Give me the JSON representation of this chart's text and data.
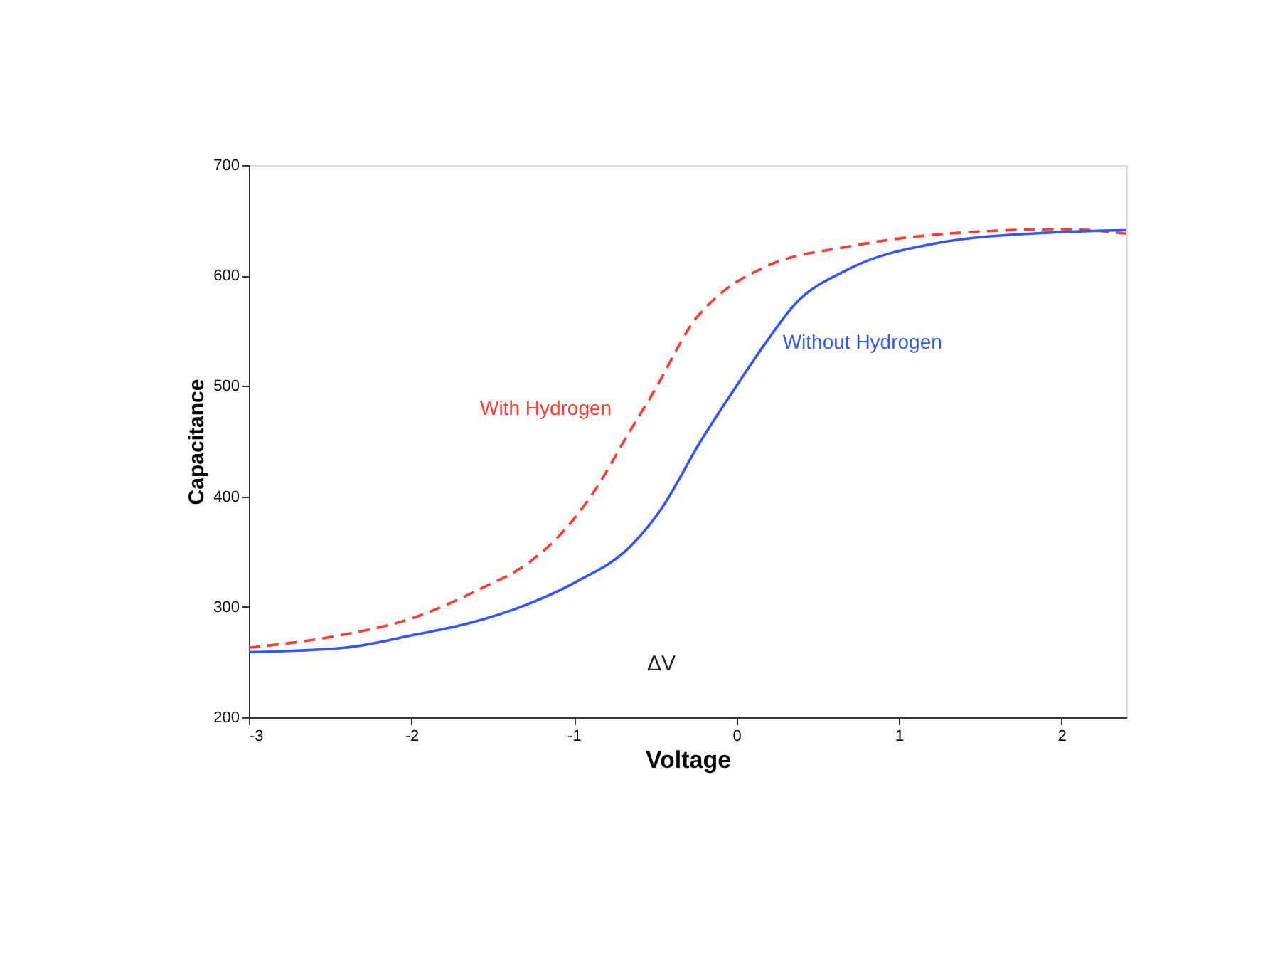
{
  "chart_data": {
    "type": "line",
    "xlabel": "Voltage",
    "ylabel": "Capacitance",
    "xlim": [
      -3,
      2.4
    ],
    "xticks": [
      -3,
      -2,
      -1,
      0,
      1,
      2
    ],
    "ylim": [
      200,
      700
    ],
    "yticks": [
      200,
      300,
      400,
      500,
      600,
      700
    ],
    "grid": false,
    "series": [
      {
        "name": "With Hydrogen",
        "color": "#ff3b2f",
        "line_style": "dashed",
        "x": [
          -3,
          -2.41,
          -2.01,
          -1.58,
          -1.26,
          -1.08,
          -0.86,
          -0.68,
          -0.5,
          -0.25,
          -0.11,
          0.18,
          0.68,
          1.22,
          2.01,
          2.4
        ],
        "values": [
          263,
          275,
          289,
          316,
          342,
          366,
          408,
          453,
          497,
          561,
          582,
          608,
          626,
          637,
          642,
          638
        ]
      },
      {
        "name": "Without Hydrogen",
        "color": "#3355ff",
        "line_style": "solid",
        "x": [
          -3,
          -2.41,
          -1.97,
          -1.65,
          -1.29,
          -0.97,
          -0.68,
          -0.47,
          -0.22,
          0,
          0.18,
          0.36,
          0.68,
          1.22,
          1.94,
          2.4
        ],
        "values": [
          259,
          263,
          275,
          285,
          302,
          324,
          351,
          387,
          450,
          500,
          539,
          574,
          605,
          629,
          639,
          641
        ]
      }
    ],
    "annotations": [
      "ΔV"
    ]
  }
}
